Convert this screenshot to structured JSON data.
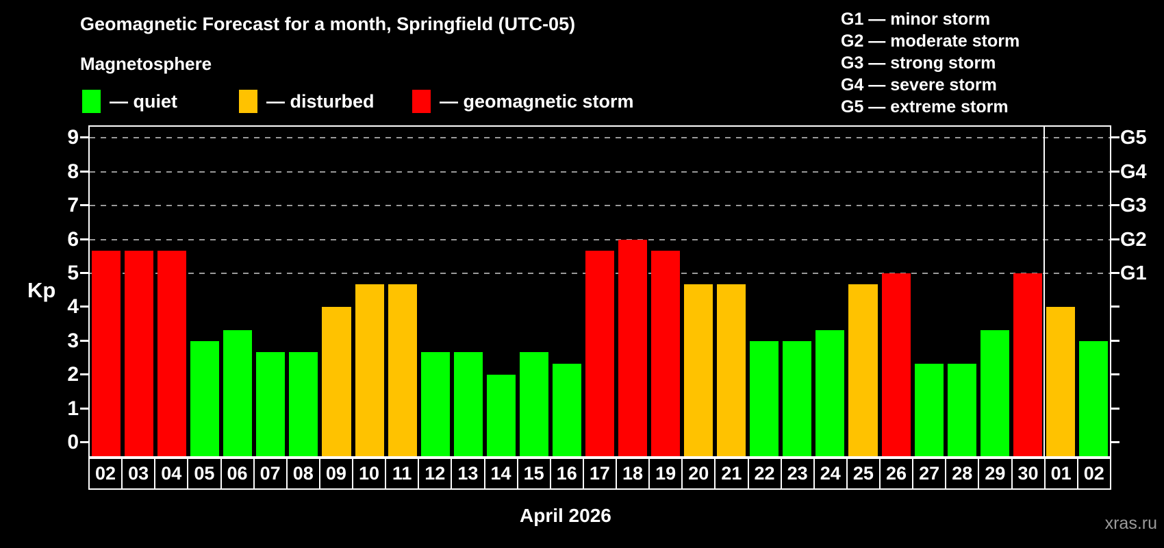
{
  "title": "Geomagnetic Forecast for a month, Springfield (UTC-05)",
  "subtitle": "Magnetosphere",
  "legend": {
    "items": [
      {
        "status": "quiet",
        "label": "— quiet",
        "color": "#00ff00"
      },
      {
        "status": "disturbed",
        "label": "— disturbed",
        "color": "#ffc200"
      },
      {
        "status": "storm",
        "label": "— geomagnetic storm",
        "color": "#ff0000"
      }
    ]
  },
  "storm_scale": [
    "G1 — minor storm",
    "G2 — moderate storm",
    "G3 — strong storm",
    "G4 — severe storm",
    "G5 — extreme storm"
  ],
  "watermark": "xras.ru",
  "chart_data": {
    "type": "bar",
    "title": "Geomagnetic Forecast for a month, Springfield (UTC-05)",
    "ylabel": "Kp",
    "xlabel": "April 2026",
    "ylim": [
      0,
      9
    ],
    "yticks": [
      0,
      1,
      2,
      3,
      4,
      5,
      6,
      7,
      8,
      9
    ],
    "gridlines": [
      5,
      6,
      7,
      8,
      9
    ],
    "grid_on": true,
    "right_axis": [
      {
        "kp": 5,
        "label": "G1"
      },
      {
        "kp": 6,
        "label": "G2"
      },
      {
        "kp": 7,
        "label": "G3"
      },
      {
        "kp": 8,
        "label": "G4"
      },
      {
        "kp": 9,
        "label": "G5"
      }
    ],
    "categories": [
      "02",
      "03",
      "04",
      "05",
      "06",
      "07",
      "08",
      "09",
      "10",
      "11",
      "12",
      "13",
      "14",
      "15",
      "16",
      "17",
      "18",
      "19",
      "20",
      "21",
      "22",
      "23",
      "24",
      "25",
      "26",
      "27",
      "28",
      "29",
      "30",
      "01",
      "02"
    ],
    "values": [
      5.67,
      5.67,
      5.67,
      3.0,
      3.33,
      2.67,
      2.67,
      4.0,
      4.67,
      4.67,
      2.67,
      2.67,
      2.0,
      2.67,
      2.33,
      5.67,
      6.0,
      5.67,
      4.67,
      4.67,
      3.0,
      3.0,
      3.33,
      4.67,
      5.0,
      2.33,
      2.33,
      3.33,
      5.0,
      4.0,
      3.0
    ],
    "statuses": [
      "storm",
      "storm",
      "storm",
      "quiet",
      "quiet",
      "quiet",
      "quiet",
      "disturbed",
      "disturbed",
      "disturbed",
      "quiet",
      "quiet",
      "quiet",
      "quiet",
      "quiet",
      "storm",
      "storm",
      "storm",
      "disturbed",
      "disturbed",
      "quiet",
      "quiet",
      "quiet",
      "disturbed",
      "storm",
      "quiet",
      "quiet",
      "quiet",
      "storm",
      "disturbed",
      "quiet"
    ],
    "colors": {
      "quiet": "#00ff00",
      "disturbed": "#ffc200",
      "storm": "#ff0000"
    },
    "month_separator_after": 28
  }
}
